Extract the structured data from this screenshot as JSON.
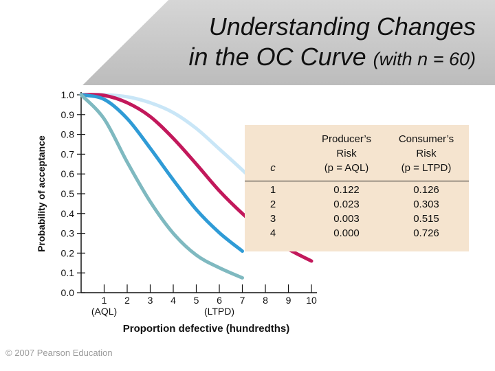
{
  "title": {
    "line1": "Understanding Changes",
    "line2_main": "in the OC Curve",
    "line2_small": "(with n = 60)"
  },
  "copyright": "© 2007 Pearson Education",
  "colors": {
    "band_top": "#cfcfcf",
    "band_bottom": "#bdbdbd",
    "table_bg": "#f5e4cf",
    "series": [
      "#7fb9c0",
      "#2f9bd6",
      "#c2185b",
      "#c9e6f7"
    ]
  },
  "chart_data": {
    "type": "line",
    "xlabel": "Proportion defective (hundredths)",
    "ylabel": "Probability of acceptance",
    "xlim": [
      0,
      10
    ],
    "ylim": [
      0,
      1.0
    ],
    "x_ticks": [
      "1",
      "2",
      "3",
      "4",
      "5",
      "6",
      "7",
      "8",
      "9",
      "10"
    ],
    "x_sublabels": [
      {
        "at": 1,
        "text": "(AQL)"
      },
      {
        "at": 6,
        "text": "(LTPD)"
      }
    ],
    "y_ticks": [
      "0.0",
      "0.1",
      "0.2",
      "0.3",
      "0.4",
      "0.5",
      "0.6",
      "0.7",
      "0.8",
      "0.9",
      "1.0"
    ],
    "series": [
      {
        "name": "1",
        "points": [
          [
            0,
            1.0
          ],
          [
            1,
            0.878
          ],
          [
            2,
            0.66
          ],
          [
            3,
            0.46
          ],
          [
            4,
            0.3
          ],
          [
            5,
            0.19
          ],
          [
            6,
            0.126
          ],
          [
            7,
            0.075
          ]
        ]
      },
      {
        "name": "2",
        "points": [
          [
            0,
            1.0
          ],
          [
            1,
            0.977
          ],
          [
            2,
            0.88
          ],
          [
            3,
            0.73
          ],
          [
            4,
            0.57
          ],
          [
            5,
            0.42
          ],
          [
            6,
            0.303
          ],
          [
            7,
            0.21
          ]
        ]
      },
      {
        "name": "3",
        "points": [
          [
            0,
            1.0
          ],
          [
            1,
            0.997
          ],
          [
            2,
            0.96
          ],
          [
            3,
            0.89
          ],
          [
            4,
            0.78
          ],
          [
            5,
            0.65
          ],
          [
            6,
            0.515
          ],
          [
            7,
            0.4
          ],
          [
            8,
            0.3
          ],
          [
            9,
            0.22
          ],
          [
            10,
            0.16
          ]
        ]
      },
      {
        "name": "4",
        "points": [
          [
            0,
            1.0
          ],
          [
            1,
            1.0
          ],
          [
            2,
            0.99
          ],
          [
            3,
            0.96
          ],
          [
            4,
            0.91
          ],
          [
            5,
            0.83
          ],
          [
            6,
            0.726
          ],
          [
            7,
            0.62
          ],
          [
            8,
            0.51
          ],
          [
            9,
            0.41
          ],
          [
            10,
            0.32
          ]
        ]
      }
    ],
    "table": {
      "headers": [
        "c",
        "Producer’s\nRisk\n(p = AQL)",
        "Consumer’s\nRisk\n(p = LTPD)"
      ],
      "rows": [
        [
          "1",
          "0.122",
          "0.126"
        ],
        [
          "2",
          "0.023",
          "0.303"
        ],
        [
          "3",
          "0.003",
          "0.515"
        ],
        [
          "4",
          "0.000",
          "0.726"
        ]
      ]
    }
  }
}
